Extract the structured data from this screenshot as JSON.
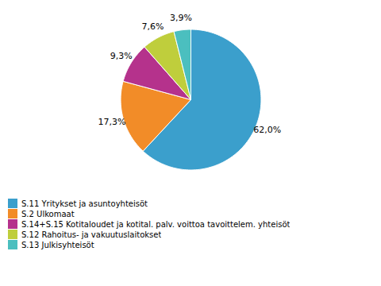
{
  "chart_data": {
    "type": "pie",
    "categories": [
      "S.11 Yritykset ja asuntoyhteisöt",
      "S.2 Ulkomaat",
      "S.14+S.15 Kotitaloudet ja kotital. palv. voittoa tavoittelem. yhteisöt",
      "S.12 Rahoitus- ja vakuutuslaitokset",
      "S.13 Julkisyhteisöt"
    ],
    "values": [
      62.0,
      17.3,
      9.3,
      7.6,
      3.9
    ],
    "value_labels": [
      "62,0%",
      "17,3%",
      "9,3%",
      "7,6%",
      "3,9%"
    ],
    "colors": [
      "#3B9FCC",
      "#F28C28",
      "#B5328C",
      "#BFCE3C",
      "#4BBFBF"
    ],
    "data_labels": true,
    "legend": "bottom"
  }
}
